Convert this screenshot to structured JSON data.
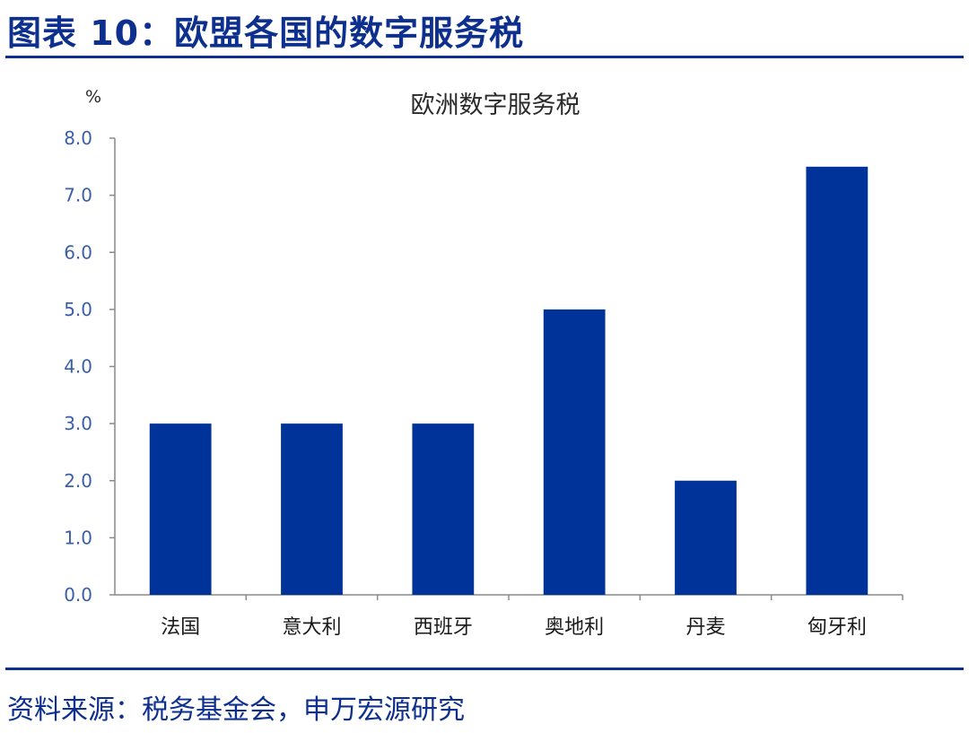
{
  "figure": {
    "title": "图表 10：欧盟各国的数字服务税",
    "source": "资料来源：税务基金会，申万宏源研究"
  },
  "colors": {
    "bar": "#003399",
    "axis": "#8a8a8a",
    "text": "#1a1a1a",
    "tick_text": "#3a5fa8",
    "header": "#0d2f8e"
  },
  "chart_data": {
    "type": "bar",
    "title": "欧洲数字服务税",
    "ylabel": "%",
    "xlabel": "",
    "categories": [
      "法国",
      "意大利",
      "西班牙",
      "奥地利",
      "丹麦",
      "匈牙利"
    ],
    "values": [
      3.0,
      3.0,
      3.0,
      5.0,
      2.0,
      7.5
    ],
    "ylim": [
      0,
      8
    ],
    "yticks": [
      "0.0",
      "1.0",
      "2.0",
      "3.0",
      "4.0",
      "5.0",
      "6.0",
      "7.0",
      "8.0"
    ],
    "grid": false,
    "legend": "none"
  }
}
